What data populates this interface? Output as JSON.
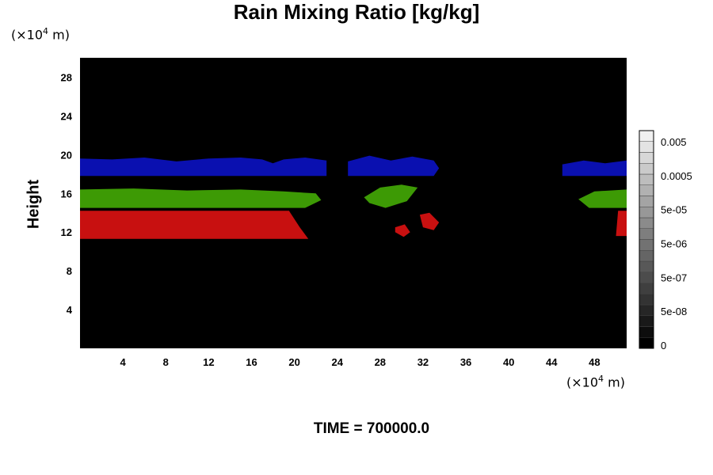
{
  "chart_data": {
    "type": "heatmap",
    "title": "Rain Mixing Ratio [kg/kg]",
    "ylabel": "Height",
    "y_unit": "10^4 m",
    "x_unit": "10^4 m",
    "x_ticks": [
      4,
      8,
      12,
      16,
      20,
      24,
      28,
      32,
      36,
      40,
      44,
      48
    ],
    "y_ticks": [
      4,
      8,
      12,
      16,
      20,
      24,
      28
    ],
    "xlim": [
      0,
      51
    ],
    "ylim": [
      0,
      30
    ],
    "colorbar": {
      "tick_labels": [
        "0.005",
        "0.0005",
        "5e-05",
        "5e-06",
        "5e-07",
        "5e-08",
        "0"
      ],
      "levels": 20,
      "colors": [
        "#000000",
        "#ffffff"
      ]
    },
    "regions": [
      {
        "name": "blue band",
        "color": "#0a10b0",
        "points": [
          [
            0,
            17.8
          ],
          [
            0,
            19.6
          ],
          [
            3,
            19.5
          ],
          [
            6,
            19.7
          ],
          [
            9,
            19.3
          ],
          [
            12,
            19.6
          ],
          [
            15,
            19.7
          ],
          [
            17,
            19.5
          ],
          [
            18,
            19.1
          ],
          [
            19,
            19.5
          ],
          [
            21,
            19.7
          ],
          [
            23,
            19.4
          ],
          [
            23,
            17.8
          ],
          [
            0,
            17.8
          ]
        ]
      },
      {
        "name": "blue patch 2",
        "color": "#0a10b0",
        "points": [
          [
            25,
            17.8
          ],
          [
            25,
            19.3
          ],
          [
            27,
            19.9
          ],
          [
            29,
            19.4
          ],
          [
            31,
            19.8
          ],
          [
            33,
            19.4
          ],
          [
            33.5,
            18.6
          ],
          [
            33,
            17.8
          ],
          [
            25,
            17.8
          ]
        ]
      },
      {
        "name": "blue patch 3",
        "color": "#0a10b0",
        "points": [
          [
            45,
            17.8
          ],
          [
            45,
            19.0
          ],
          [
            47,
            19.4
          ],
          [
            49,
            19.1
          ],
          [
            51,
            19.4
          ],
          [
            51,
            17.8
          ],
          [
            45,
            17.8
          ]
        ]
      },
      {
        "name": "green band",
        "color": "#3d9a05",
        "points": [
          [
            0,
            14.5
          ],
          [
            0,
            16.4
          ],
          [
            5,
            16.5
          ],
          [
            10,
            16.3
          ],
          [
            15,
            16.4
          ],
          [
            19,
            16.2
          ],
          [
            22,
            16.0
          ],
          [
            22.5,
            15.3
          ],
          [
            21,
            14.5
          ],
          [
            0,
            14.5
          ]
        ]
      },
      {
        "name": "green patch",
        "color": "#3d9a05",
        "points": [
          [
            26.5,
            15.6
          ],
          [
            28,
            16.6
          ],
          [
            30,
            16.9
          ],
          [
            31.5,
            16.6
          ],
          [
            30.5,
            15.2
          ],
          [
            28.5,
            14.5
          ],
          [
            27,
            15.0
          ],
          [
            26.5,
            15.6
          ]
        ]
      },
      {
        "name": "green right",
        "color": "#3d9a05",
        "points": [
          [
            46.5,
            15.4
          ],
          [
            48,
            16.2
          ],
          [
            51,
            16.4
          ],
          [
            51,
            14.5
          ],
          [
            47.5,
            14.5
          ],
          [
            46.5,
            15.4
          ]
        ]
      },
      {
        "name": "red band",
        "color": "#c81010",
        "points": [
          [
            0,
            11.3
          ],
          [
            0,
            14.2
          ],
          [
            10,
            14.2
          ],
          [
            19.5,
            14.2
          ],
          [
            20.5,
            12.5
          ],
          [
            21.3,
            11.3
          ],
          [
            0,
            11.3
          ]
        ]
      },
      {
        "name": "red blob",
        "color": "#c81010",
        "points": [
          [
            31.7,
            13.8
          ],
          [
            32.6,
            14.0
          ],
          [
            33.5,
            13.0
          ],
          [
            33.0,
            12.2
          ],
          [
            32.0,
            12.5
          ],
          [
            31.7,
            13.8
          ]
        ]
      },
      {
        "name": "red dot",
        "color": "#c81010",
        "points": [
          [
            29.4,
            12.5
          ],
          [
            30.3,
            12.8
          ],
          [
            30.8,
            12.0
          ],
          [
            30.2,
            11.5
          ],
          [
            29.4,
            12.0
          ],
          [
            29.4,
            12.5
          ]
        ]
      },
      {
        "name": "red right",
        "color": "#c81010",
        "points": [
          [
            50,
            11.6
          ],
          [
            50.2,
            14.2
          ],
          [
            51,
            14.2
          ],
          [
            51,
            11.6
          ],
          [
            50,
            11.6
          ]
        ]
      }
    ]
  },
  "footer": {
    "time_label": "TIME = 700000.0"
  }
}
